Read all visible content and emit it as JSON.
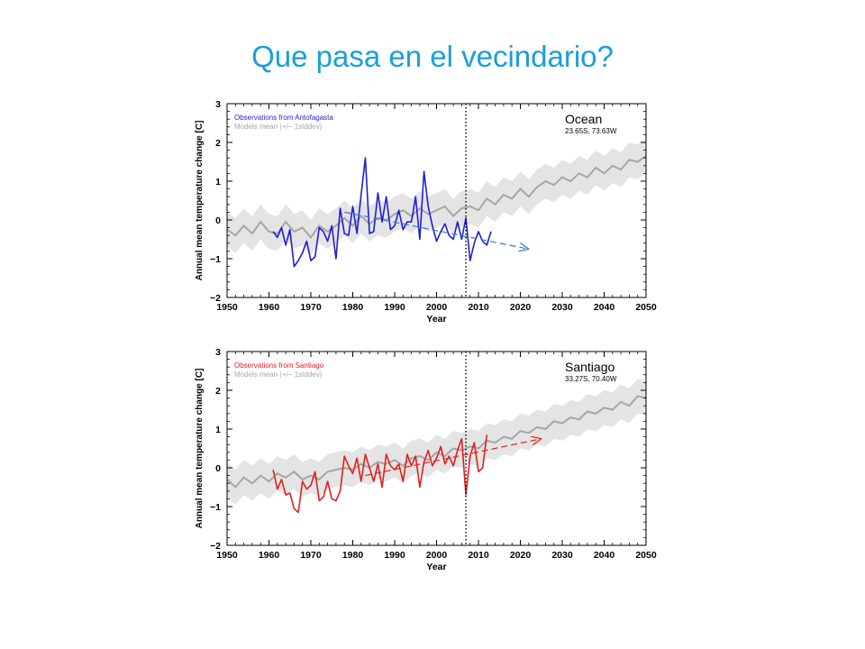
{
  "slide": {
    "title": "Que pasa en el vecindario?"
  },
  "colors": {
    "title": "#1a9fd8",
    "ocean_obs": "#1f1fd4",
    "santiago_obs": "#e02020",
    "model_mean": "#a6a6a6",
    "model_band": "#e4e4e4",
    "ocean_trend": "#3a78c8",
    "santiago_trend": "#e02020"
  },
  "chart_data": [
    {
      "type": "line",
      "panel": "ocean",
      "place_label": "Ocean",
      "coords_label": "23.65S, 73.63W",
      "xlabel": "Year",
      "ylabel": "Annual mean temperature change [C]",
      "xlim": [
        1950,
        2050
      ],
      "ylim": [
        -2,
        3
      ],
      "xticks": [
        1950,
        1960,
        1970,
        1980,
        1990,
        2000,
        2010,
        2020,
        2030,
        2040,
        2050
      ],
      "yticks": [
        -2,
        -1,
        0,
        1,
        2,
        3
      ],
      "vline_x": 2007,
      "legend": {
        "observations": "Observations from Antofagasta",
        "models": "Models mean (+/− 1stddev)"
      },
      "observations": [
        [
          1961,
          -0.3
        ],
        [
          1962,
          -0.45
        ],
        [
          1963,
          -0.2
        ],
        [
          1964,
          -0.65
        ],
        [
          1965,
          -0.25
        ],
        [
          1966,
          -1.2
        ],
        [
          1967,
          -1.05
        ],
        [
          1968,
          -0.85
        ],
        [
          1969,
          -0.55
        ],
        [
          1970,
          -1.05
        ],
        [
          1971,
          -0.95
        ],
        [
          1972,
          -0.2
        ],
        [
          1973,
          -0.3
        ],
        [
          1974,
          -0.55
        ],
        [
          1975,
          -0.15
        ],
        [
          1976,
          -1.0
        ],
        [
          1977,
          0.3
        ],
        [
          1978,
          -0.35
        ],
        [
          1979,
          -0.4
        ],
        [
          1980,
          0.35
        ],
        [
          1981,
          -0.35
        ],
        [
          1982,
          0.65
        ],
        [
          1983,
          1.6
        ],
        [
          1984,
          -0.35
        ],
        [
          1985,
          -0.3
        ],
        [
          1986,
          0.7
        ],
        [
          1987,
          -0.05
        ],
        [
          1988,
          0.6
        ],
        [
          1989,
          -0.25
        ],
        [
          1990,
          -0.15
        ],
        [
          1991,
          0.25
        ],
        [
          1992,
          -0.25
        ],
        [
          1993,
          -0.05
        ],
        [
          1994,
          -0.05
        ],
        [
          1995,
          0.6
        ],
        [
          1996,
          -0.5
        ],
        [
          1997,
          1.25
        ],
        [
          1998,
          0.35
        ],
        [
          1999,
          -0.15
        ],
        [
          2000,
          -0.55
        ],
        [
          2001,
          -0.3
        ],
        [
          2002,
          -0.1
        ],
        [
          2003,
          -0.4
        ],
        [
          2004,
          -0.5
        ],
        [
          2005,
          -0.05
        ],
        [
          2006,
          -0.5
        ],
        [
          2007,
          0.05
        ],
        [
          2008,
          -1.05
        ],
        [
          2009,
          -0.6
        ],
        [
          2010,
          -0.3
        ],
        [
          2011,
          -0.55
        ],
        [
          2012,
          -0.65
        ],
        [
          2013,
          -0.3
        ]
      ],
      "trend": [
        [
          1978,
          0.2
        ],
        [
          2022,
          -0.75
        ]
      ],
      "model_mean": [
        [
          1950,
          -0.25
        ],
        [
          1952,
          -0.4
        ],
        [
          1954,
          -0.15
        ],
        [
          1956,
          -0.35
        ],
        [
          1958,
          -0.05
        ],
        [
          1960,
          -0.3
        ],
        [
          1962,
          -0.35
        ],
        [
          1964,
          -0.05
        ],
        [
          1966,
          -0.3
        ],
        [
          1968,
          -0.2
        ],
        [
          1970,
          -0.45
        ],
        [
          1972,
          -0.15
        ],
        [
          1974,
          -0.3
        ],
        [
          1976,
          -0.15
        ],
        [
          1978,
          0.05
        ],
        [
          1980,
          -0.15
        ],
        [
          1982,
          0.1
        ],
        [
          1984,
          -0.1
        ],
        [
          1986,
          0.05
        ],
        [
          1988,
          0.0
        ],
        [
          1990,
          0.15
        ],
        [
          1992,
          0.25
        ],
        [
          1994,
          0.1
        ],
        [
          1996,
          0.3
        ],
        [
          1998,
          0.15
        ],
        [
          2000,
          0.25
        ],
        [
          2002,
          0.35
        ],
        [
          2004,
          0.1
        ],
        [
          2006,
          0.3
        ],
        [
          2008,
          0.35
        ],
        [
          2010,
          0.25
        ],
        [
          2012,
          0.55
        ],
        [
          2014,
          0.4
        ],
        [
          2016,
          0.65
        ],
        [
          2018,
          0.55
        ],
        [
          2020,
          0.8
        ],
        [
          2022,
          0.6
        ],
        [
          2024,
          0.85
        ],
        [
          2026,
          1.0
        ],
        [
          2028,
          0.9
        ],
        [
          2030,
          1.1
        ],
        [
          2032,
          1.0
        ],
        [
          2034,
          1.2
        ],
        [
          2036,
          1.1
        ],
        [
          2038,
          1.35
        ],
        [
          2040,
          1.2
        ],
        [
          2042,
          1.4
        ],
        [
          2044,
          1.3
        ],
        [
          2046,
          1.55
        ],
        [
          2048,
          1.5
        ],
        [
          2050,
          1.65
        ]
      ],
      "model_spread": 0.45
    },
    {
      "type": "line",
      "panel": "santiago",
      "place_label": "Santiago",
      "coords_label": "33.27S, 70.40W",
      "xlabel": "Year",
      "ylabel": "Annual mean temperature change [C]",
      "xlim": [
        1950,
        2050
      ],
      "ylim": [
        -2,
        3
      ],
      "xticks": [
        1950,
        1960,
        1970,
        1980,
        1990,
        2000,
        2010,
        2020,
        2030,
        2040,
        2050
      ],
      "yticks": [
        -2,
        -1,
        0,
        1,
        2,
        3
      ],
      "vline_x": 2007,
      "legend": {
        "observations": "Observations from Santiago",
        "models": "Models mean (+/− 1stddev)"
      },
      "observations": [
        [
          1961,
          -0.05
        ],
        [
          1962,
          -0.55
        ],
        [
          1963,
          -0.3
        ],
        [
          1964,
          -0.7
        ],
        [
          1965,
          -0.65
        ],
        [
          1966,
          -1.05
        ],
        [
          1967,
          -1.15
        ],
        [
          1968,
          -0.35
        ],
        [
          1969,
          -0.55
        ],
        [
          1970,
          -0.45
        ],
        [
          1971,
          -0.1
        ],
        [
          1972,
          -0.85
        ],
        [
          1973,
          -0.75
        ],
        [
          1974,
          -0.35
        ],
        [
          1975,
          -0.8
        ],
        [
          1976,
          -0.85
        ],
        [
          1977,
          -0.6
        ],
        [
          1978,
          0.3
        ],
        [
          1979,
          0.05
        ],
        [
          1980,
          -0.15
        ],
        [
          1981,
          0.25
        ],
        [
          1982,
          -0.35
        ],
        [
          1983,
          0.35
        ],
        [
          1984,
          0.0
        ],
        [
          1985,
          -0.35
        ],
        [
          1986,
          0.1
        ],
        [
          1987,
          -0.5
        ],
        [
          1988,
          0.35
        ],
        [
          1989,
          0.05
        ],
        [
          1990,
          -0.05
        ],
        [
          1991,
          0.1
        ],
        [
          1992,
          -0.35
        ],
        [
          1993,
          0.35
        ],
        [
          1994,
          0.05
        ],
        [
          1995,
          0.3
        ],
        [
          1996,
          -0.5
        ],
        [
          1997,
          0.15
        ],
        [
          1998,
          0.45
        ],
        [
          1999,
          0.05
        ],
        [
          2000,
          0.25
        ],
        [
          2001,
          0.55
        ],
        [
          2002,
          0.1
        ],
        [
          2003,
          0.3
        ],
        [
          2004,
          0.05
        ],
        [
          2005,
          0.45
        ],
        [
          2006,
          0.75
        ],
        [
          2007,
          -0.7
        ],
        [
          2008,
          0.3
        ],
        [
          2009,
          0.65
        ],
        [
          2010,
          -0.1
        ],
        [
          2011,
          0.0
        ],
        [
          2012,
          0.85
        ]
      ],
      "trend": [
        [
          1983,
          -0.2
        ],
        [
          2025,
          0.75
        ]
      ],
      "model_mean": [
        [
          1950,
          -0.3
        ],
        [
          1952,
          -0.5
        ],
        [
          1954,
          -0.25
        ],
        [
          1956,
          -0.4
        ],
        [
          1958,
          -0.2
        ],
        [
          1960,
          -0.35
        ],
        [
          1962,
          -0.15
        ],
        [
          1964,
          -0.25
        ],
        [
          1966,
          -0.1
        ],
        [
          1968,
          -0.3
        ],
        [
          1970,
          -0.2
        ],
        [
          1972,
          -0.3
        ],
        [
          1974,
          -0.1
        ],
        [
          1976,
          -0.05
        ],
        [
          1978,
          0.0
        ],
        [
          1980,
          -0.05
        ],
        [
          1982,
          0.1
        ],
        [
          1984,
          0.0
        ],
        [
          1986,
          0.15
        ],
        [
          1988,
          0.1
        ],
        [
          1990,
          0.2
        ],
        [
          1992,
          0.05
        ],
        [
          1994,
          0.25
        ],
        [
          1996,
          0.3
        ],
        [
          1998,
          0.2
        ],
        [
          2000,
          0.4
        ],
        [
          2002,
          0.3
        ],
        [
          2004,
          0.5
        ],
        [
          2006,
          0.45
        ],
        [
          2008,
          0.55
        ],
        [
          2010,
          0.5
        ],
        [
          2012,
          0.7
        ],
        [
          2014,
          0.65
        ],
        [
          2016,
          0.8
        ],
        [
          2018,
          0.75
        ],
        [
          2020,
          0.95
        ],
        [
          2022,
          0.9
        ],
        [
          2024,
          1.05
        ],
        [
          2026,
          1.0
        ],
        [
          2028,
          1.2
        ],
        [
          2030,
          1.15
        ],
        [
          2032,
          1.3
        ],
        [
          2034,
          1.25
        ],
        [
          2036,
          1.45
        ],
        [
          2038,
          1.4
        ],
        [
          2040,
          1.55
        ],
        [
          2042,
          1.5
        ],
        [
          2044,
          1.7
        ],
        [
          2046,
          1.6
        ],
        [
          2048,
          1.85
        ],
        [
          2050,
          1.8
        ]
      ],
      "model_spread": 0.45
    }
  ]
}
